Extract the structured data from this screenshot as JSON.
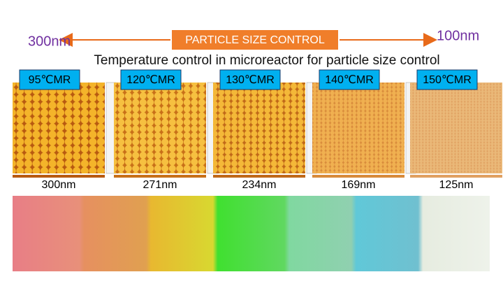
{
  "header": {
    "left_label": "300nm",
    "banner": "PARTICLE SIZE CONTROL",
    "right_label": "100nm",
    "subtitle": "Temperature control in microreactor for particle size control"
  },
  "panels": [
    {
      "temperature": "95℃MR",
      "size": "300nm"
    },
    {
      "temperature": "120℃MR",
      "size": "271nm"
    },
    {
      "temperature": "130℃MR",
      "size": "234nm"
    },
    {
      "temperature": "140℃MR",
      "size": "169nm"
    },
    {
      "temperature": "150℃MR",
      "size": "125nm"
    }
  ]
}
